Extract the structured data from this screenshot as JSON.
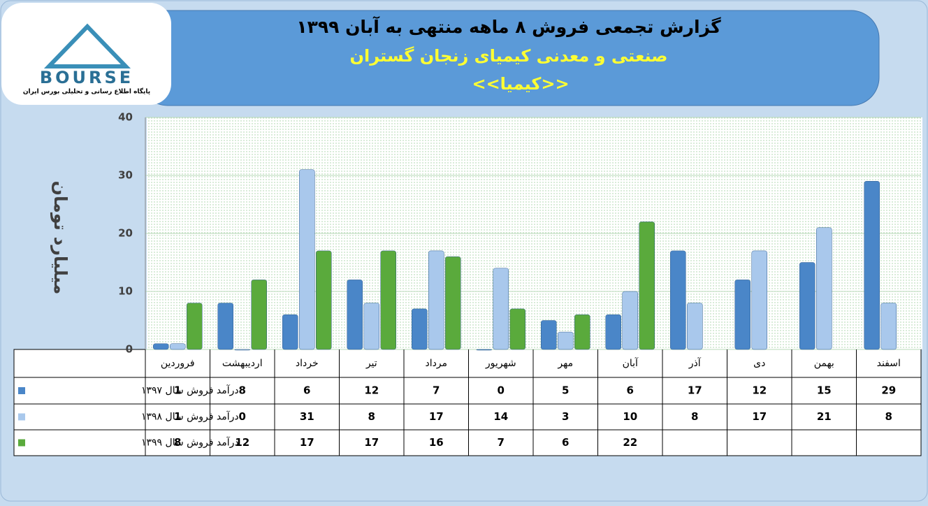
{
  "logo": {
    "name": "BOURSE",
    "tagline": "پایگاه اطلاع رسانی و تحلیلی بورس ایران"
  },
  "chart_data": {
    "type": "bar",
    "title": "گزارش تجمعی فروش ۸ ماهه منتهی به آبان ۱۳۹۹",
    "subtitle": "صنعتی و معدنی کیمیای زنجان گستران",
    "symbol": "<<کیمیا>>",
    "y_label": "میلیارد تومان",
    "categories": [
      "فروردین",
      "اردیبهشت",
      "خرداد",
      "تیر",
      "مرداد",
      "شهریور",
      "مهر",
      "آبان",
      "آذر",
      "دی",
      "بهمن",
      "اسفند"
    ],
    "series": [
      {
        "name": "درآمد فروش سال ۱۳۹۷",
        "color": "#4a86c8",
        "values": [
          1,
          8,
          6,
          12,
          7,
          0,
          5,
          6,
          17,
          12,
          15,
          29
        ]
      },
      {
        "name": "درآمد فروش سال ۱۳۹۸",
        "color": "#a9c8ec",
        "values": [
          1,
          0,
          31,
          8,
          17,
          14,
          3,
          10,
          8,
          17,
          21,
          8
        ]
      },
      {
        "name": "درآمد فروش سال ۱۳۹۹",
        "color": "#5aaa3c",
        "values": [
          8,
          12,
          17,
          17,
          16,
          7,
          6,
          22,
          null,
          null,
          null,
          null
        ]
      }
    ],
    "ylim": [
      0,
      40
    ],
    "yticks": [
      0,
      10,
      20,
      30,
      40
    ],
    "grid": true
  }
}
